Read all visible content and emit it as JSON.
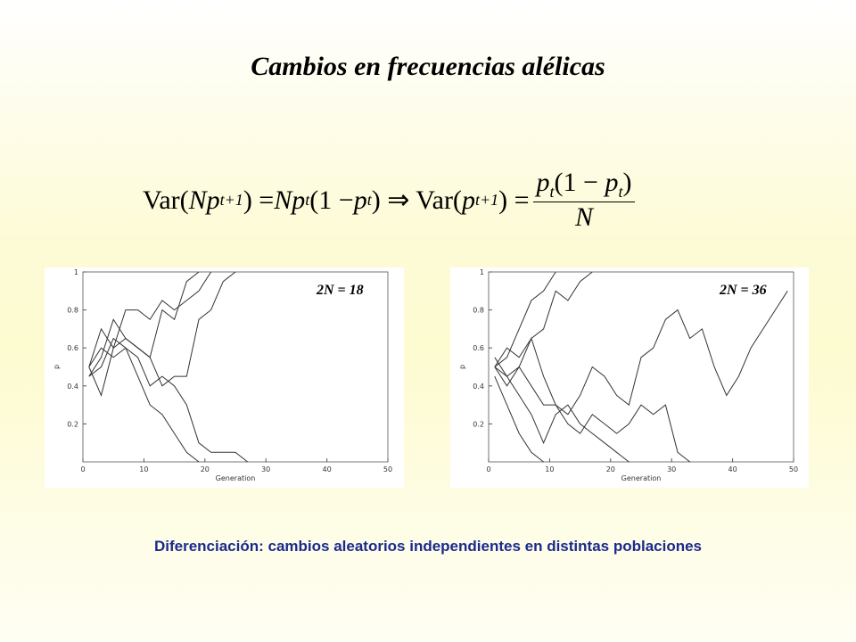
{
  "title": "Cambios en frecuencias alélicas",
  "formula": {
    "parts": [
      "Var(",
      "N",
      "p",
      "t+1",
      ") = ",
      "N",
      "p",
      "t",
      "(1 − ",
      "p",
      "t",
      ") ⇒ Var(",
      "p",
      "t+1",
      ") = "
    ],
    "numerator": [
      "p",
      "t",
      "(1 − ",
      "p",
      "t",
      ")"
    ],
    "denominator": "N"
  },
  "caption": "Diferenciación: cambios aleatorios independientes en distintas poblaciones",
  "chart_data": [
    {
      "type": "line",
      "annotation": "2N = 18",
      "xlabel": "Generation",
      "ylabel": "p",
      "x": [
        1,
        3,
        5,
        7,
        9,
        11,
        13,
        15,
        17,
        19,
        21,
        23,
        25,
        27,
        29
      ],
      "xlim": [
        0,
        50
      ],
      "xticks": [
        0,
        10,
        20,
        30,
        40,
        50
      ],
      "ylim": [
        0,
        1
      ],
      "yticks": [
        0.2,
        0.4,
        0.6,
        0.8,
        1
      ],
      "series": [
        {
          "color": "#333333",
          "values": [
            0.5,
            0.7,
            0.6,
            0.8,
            0.8,
            0.75,
            0.85,
            0.8,
            0.85,
            0.9,
            1,
            null,
            null,
            null,
            null
          ]
        },
        {
          "color": "#333333",
          "values": [
            0.45,
            0.55,
            0.75,
            0.65,
            0.6,
            0.55,
            0.8,
            0.75,
            0.95,
            1,
            null,
            null,
            null,
            null,
            null
          ]
        },
        {
          "color": "#333333",
          "values": [
            0.5,
            0.35,
            0.6,
            0.65,
            0.6,
            0.55,
            0.4,
            0.45,
            0.45,
            0.75,
            0.8,
            0.95,
            1,
            null,
            null
          ]
        },
        {
          "color": "#333333",
          "values": [
            0.5,
            0.6,
            0.55,
            0.6,
            0.55,
            0.4,
            0.45,
            0.4,
            0.3,
            0.1,
            0.05,
            0.05,
            0.05,
            0,
            null
          ]
        },
        {
          "color": "#333333",
          "values": [
            0.45,
            0.5,
            0.65,
            0.6,
            0.45,
            0.3,
            0.25,
            0.15,
            0.05,
            0,
            null,
            null,
            null,
            null,
            null
          ]
        }
      ]
    },
    {
      "type": "line",
      "annotation": "2N = 36",
      "xlabel": "Generation",
      "ylabel": "p",
      "x": [
        1,
        3,
        5,
        7,
        9,
        11,
        13,
        15,
        17,
        19,
        21,
        23,
        25,
        27,
        29,
        31,
        33,
        35,
        37,
        39,
        41,
        43,
        45,
        47,
        49
      ],
      "xlim": [
        0,
        50
      ],
      "xticks": [
        0,
        10,
        20,
        30,
        40,
        50
      ],
      "ylim": [
        0,
        1
      ],
      "yticks": [
        0.2,
        0.4,
        0.6,
        0.8,
        1
      ],
      "series": [
        {
          "color": "#333333",
          "values": [
            0.5,
            0.55,
            0.7,
            0.85,
            0.9,
            1,
            null,
            null,
            null,
            null,
            null,
            null,
            null,
            null,
            null,
            null,
            null,
            null,
            null,
            null,
            null,
            null,
            null,
            null,
            null
          ]
        },
        {
          "color": "#333333",
          "values": [
            0.5,
            0.6,
            0.55,
            0.65,
            0.7,
            0.9,
            0.85,
            0.95,
            1,
            null,
            null,
            null,
            null,
            null,
            null,
            null,
            null,
            null,
            null,
            null,
            null,
            null,
            null,
            null,
            null
          ]
        },
        {
          "color": "#333333",
          "values": [
            0.55,
            0.45,
            0.5,
            0.4,
            0.3,
            0.3,
            0.25,
            0.35,
            0.5,
            0.45,
            0.35,
            0.3,
            0.55,
            0.6,
            0.75,
            0.8,
            0.65,
            0.7,
            0.5,
            0.35,
            0.45,
            0.6,
            0.7,
            0.8,
            0.9
          ]
        },
        {
          "color": "#333333",
          "values": [
            0.5,
            0.4,
            0.5,
            0.65,
            0.45,
            0.3,
            0.2,
            0.15,
            0.25,
            0.2,
            0.15,
            0.2,
            0.3,
            0.25,
            0.3,
            0.05,
            0,
            null,
            null,
            null,
            null,
            null,
            null,
            null,
            null
          ]
        },
        {
          "color": "#333333",
          "values": [
            0.45,
            0.3,
            0.15,
            0.05,
            0,
            null,
            null,
            null,
            null,
            null,
            null,
            null,
            null,
            null,
            null,
            null,
            null,
            null,
            null,
            null,
            null,
            null,
            null,
            null,
            null
          ]
        },
        {
          "color": "#333333",
          "values": [
            0.5,
            0.45,
            0.35,
            0.25,
            0.1,
            0.25,
            0.3,
            0.2,
            0.15,
            0.1,
            0.05,
            0,
            null,
            null,
            null,
            null,
            null,
            null,
            null,
            null,
            null,
            null,
            null,
            null,
            null
          ]
        }
      ]
    }
  ]
}
